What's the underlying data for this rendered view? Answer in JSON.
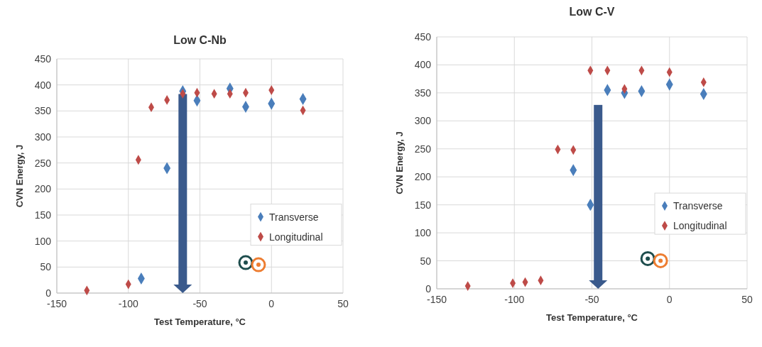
{
  "chart_data": [
    {
      "type": "scatter",
      "title": "Low C-Nb",
      "xlabel": "Test Temperature, °C",
      "ylabel": "CVN Energy, J",
      "xlim": [
        -150,
        50
      ],
      "xticks": [
        -150,
        -100,
        -50,
        0,
        50
      ],
      "ylim": [
        0,
        450
      ],
      "yticks": [
        0,
        50,
        100,
        150,
        200,
        250,
        300,
        350,
        400,
        450
      ],
      "grid": true,
      "legend": "right",
      "marker": "diamond",
      "series": [
        {
          "name": "Transverse",
          "color": "#4a7ebb",
          "x": [
            -91,
            -73,
            -62,
            -52,
            -29,
            -18,
            0,
            22
          ],
          "values": [
            28,
            240,
            388,
            370,
            393,
            358,
            364,
            373
          ]
        },
        {
          "name": "Longitudinal",
          "color": "#be4b48",
          "x": [
            -129,
            -100,
            -93,
            -84,
            -73,
            -62,
            -52,
            -40,
            -29,
            -18,
            0,
            22
          ],
          "values": [
            5,
            17,
            256,
            357,
            371,
            383,
            385,
            383,
            383,
            385,
            390,
            351
          ]
        }
      ]
    },
    {
      "type": "scatter",
      "title": "Low C-V",
      "xlabel": "Test Temperature, °C",
      "ylabel": "CVN Energy, J",
      "xlim": [
        -150,
        50
      ],
      "xticks": [
        -150,
        -100,
        -50,
        0,
        50
      ],
      "ylim": [
        0,
        450
      ],
      "yticks": [
        0,
        50,
        100,
        150,
        200,
        250,
        300,
        350,
        400,
        450
      ],
      "grid": true,
      "legend": "right",
      "marker": "diamond",
      "series": [
        {
          "name": "Transverse",
          "color": "#4a7ebb",
          "x": [
            -62,
            -51,
            -40,
            -29,
            -18,
            0,
            22
          ],
          "values": [
            212,
            150,
            355,
            350,
            353,
            365,
            348
          ]
        },
        {
          "name": "Longitudinal",
          "color": "#be4b48",
          "x": [
            -130,
            -101,
            -93,
            -83,
            -72,
            -62,
            -51,
            -40,
            -29,
            -18,
            0,
            22
          ],
          "values": [
            5,
            10,
            12,
            15,
            249,
            248,
            390,
            390,
            357,
            390,
            387,
            369
          ]
        }
      ]
    }
  ]
}
